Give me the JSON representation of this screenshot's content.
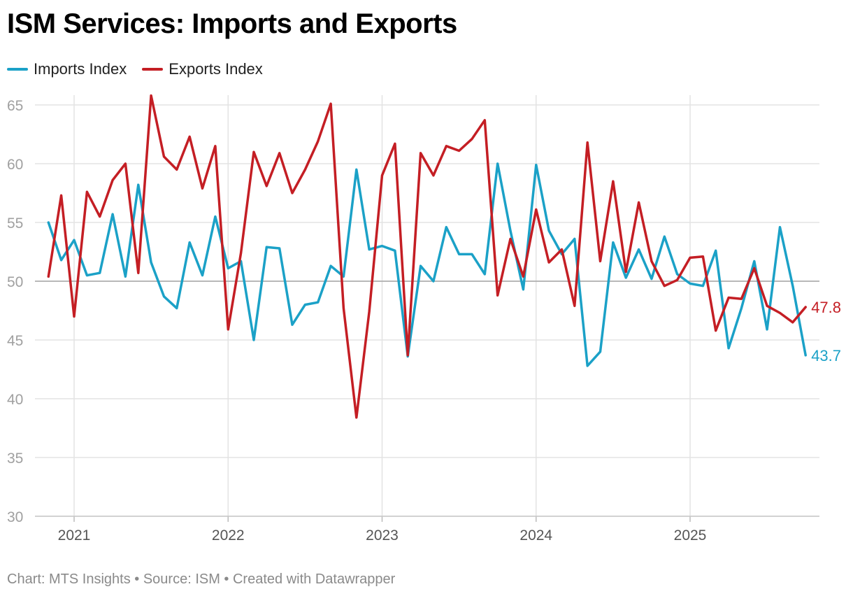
{
  "title": "ISM Services: Imports and Exports",
  "footer": "Chart: MTS Insights • Source: ISM • Created with Datawrapper",
  "chart_data": {
    "type": "line",
    "title": "ISM Services: Imports and Exports",
    "xlabel": "",
    "ylabel": "",
    "ylim": [
      30,
      66
    ],
    "yticks": [
      30,
      35,
      40,
      45,
      50,
      55,
      60,
      65
    ],
    "xticks": [
      "2021",
      "2022",
      "2023",
      "2024",
      "2025"
    ],
    "reference_line": 50,
    "grid": true,
    "legend_position": "top-left",
    "x": [
      "2020-11",
      "2020-12",
      "2021-01",
      "2021-02",
      "2021-03",
      "2021-04",
      "2021-05",
      "2021-06",
      "2021-07",
      "2021-08",
      "2021-09",
      "2021-10",
      "2021-11",
      "2021-12",
      "2022-01",
      "2022-02",
      "2022-03",
      "2022-04",
      "2022-05",
      "2022-06",
      "2022-07",
      "2022-08",
      "2022-09",
      "2022-10",
      "2022-11",
      "2022-12",
      "2023-01",
      "2023-02",
      "2023-03",
      "2023-04",
      "2023-05",
      "2023-06",
      "2023-07",
      "2023-08",
      "2023-09",
      "2023-10",
      "2023-11",
      "2023-12",
      "2024-01",
      "2024-02",
      "2024-03",
      "2024-04",
      "2024-05",
      "2024-06",
      "2024-07",
      "2024-08",
      "2024-09",
      "2024-10",
      "2024-11",
      "2024-12",
      "2025-01",
      "2025-02",
      "2025-03",
      "2025-04",
      "2025-05",
      "2025-06",
      "2025-07",
      "2025-08",
      "2025-09",
      "2025-10"
    ],
    "series": [
      {
        "name": "Imports Index",
        "color": "#1ba1c7",
        "end_label": "43.7",
        "values": [
          55.0,
          51.8,
          53.5,
          50.5,
          50.7,
          55.7,
          50.4,
          58.2,
          51.6,
          48.7,
          47.7,
          53.3,
          50.5,
          55.5,
          51.1,
          51.7,
          45.0,
          52.9,
          52.8,
          46.3,
          48.0,
          48.2,
          51.3,
          50.4,
          59.5,
          52.7,
          53.0,
          52.6,
          43.6,
          51.3,
          50.0,
          54.6,
          52.3,
          52.3,
          50.6,
          60.0,
          54.3,
          49.3,
          59.9,
          54.3,
          52.3,
          53.6,
          42.8,
          44.0,
          53.3,
          50.3,
          52.7,
          50.2,
          53.8,
          50.6,
          49.8,
          49.6,
          52.6,
          44.3,
          47.7,
          51.7,
          45.9,
          54.6,
          49.6,
          43.7
        ]
      },
      {
        "name": "Exports Index",
        "color": "#c41e24",
        "end_label": "47.8",
        "values": [
          50.4,
          57.3,
          47.0,
          57.6,
          55.5,
          58.6,
          60.0,
          50.7,
          65.8,
          60.6,
          59.5,
          62.3,
          57.9,
          61.5,
          45.9,
          52.4,
          61.0,
          58.1,
          60.9,
          57.5,
          59.5,
          61.9,
          65.1,
          47.7,
          38.4,
          47.4,
          59.0,
          61.7,
          43.7,
          60.9,
          59.0,
          61.5,
          61.1,
          62.1,
          63.7,
          48.8,
          53.6,
          50.4,
          56.1,
          51.6,
          52.7,
          47.9,
          61.8,
          51.7,
          58.5,
          50.8,
          56.7,
          51.7,
          49.6,
          50.1,
          52.0,
          52.1,
          45.8,
          48.6,
          48.5,
          51.1,
          47.9,
          47.3,
          46.5,
          47.8
        ]
      }
    ]
  }
}
